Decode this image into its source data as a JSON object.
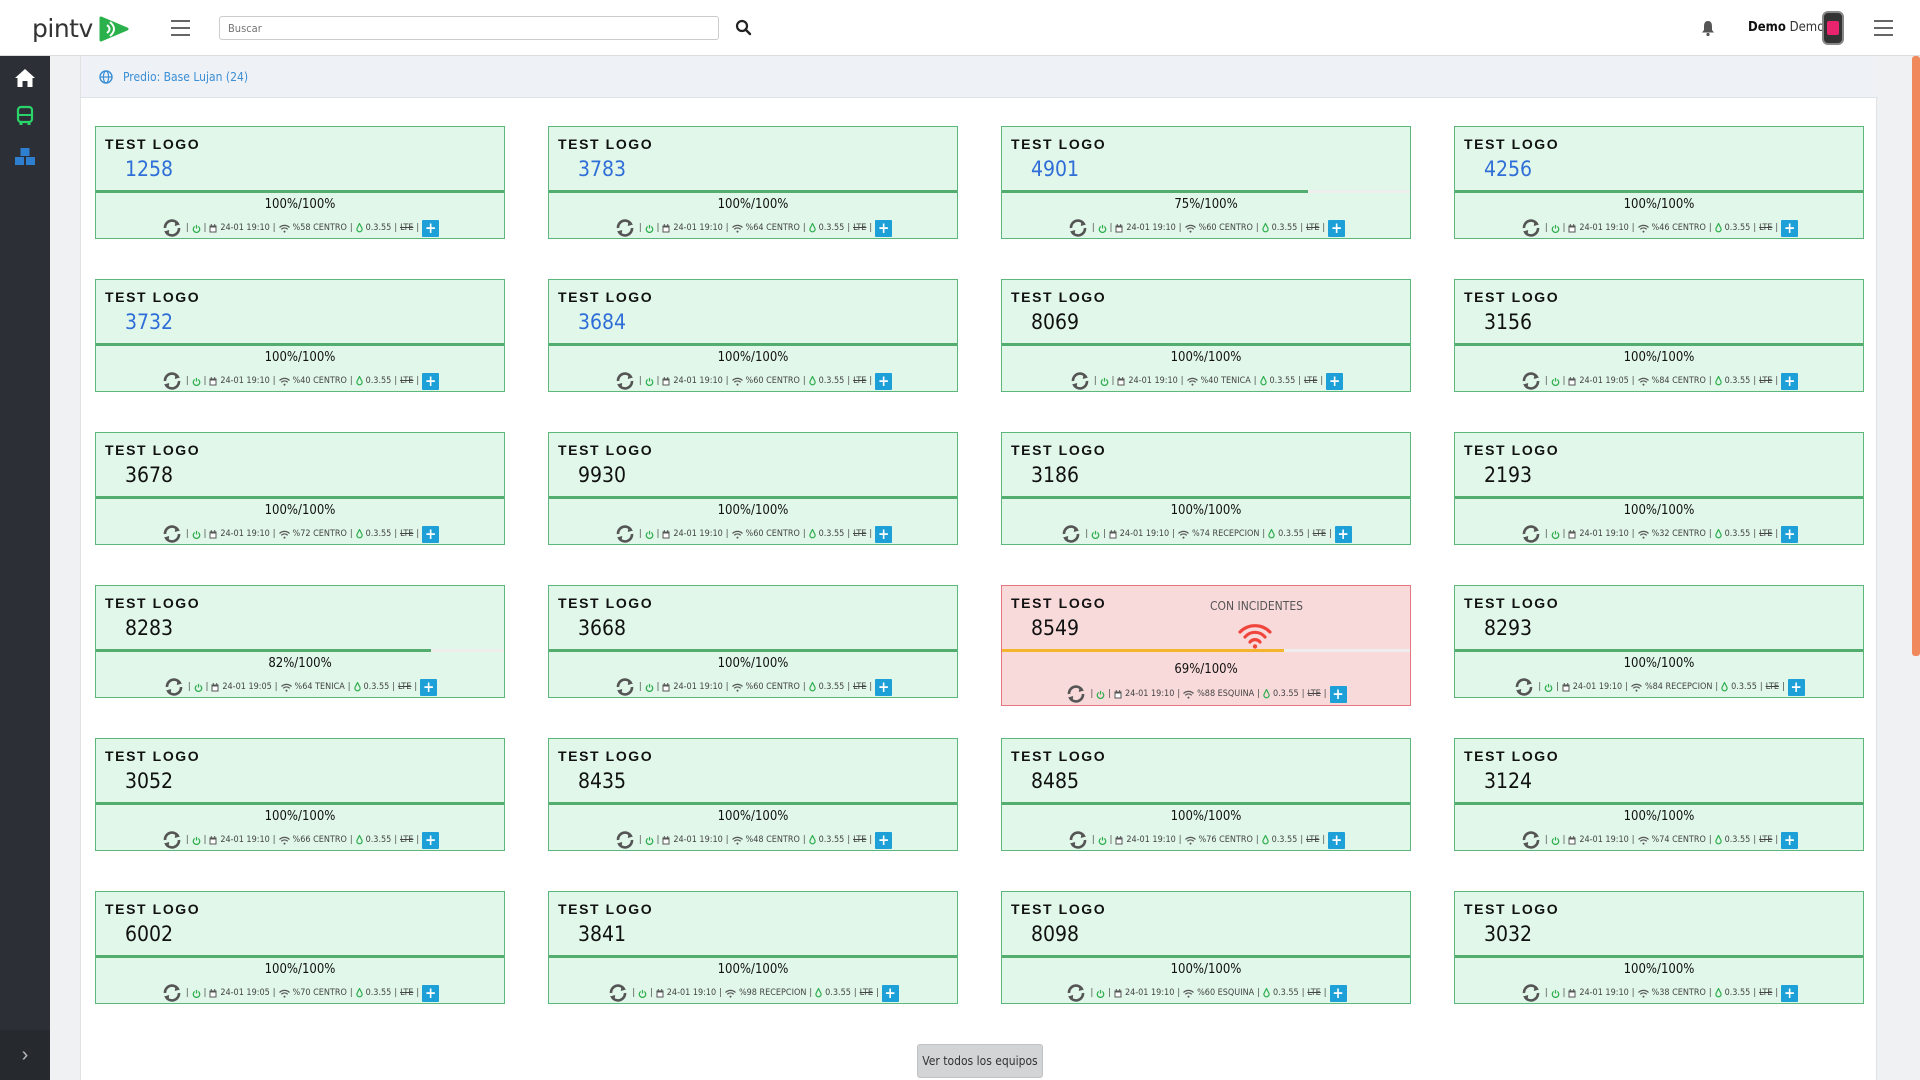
{
  "app": {
    "logo_text": "pintv"
  },
  "search": {
    "placeholder": "Buscar"
  },
  "user": {
    "first": "Demo",
    "last": "Demo"
  },
  "breadcrumb": {
    "label": "Predio: Base Lujan (24)"
  },
  "footer": {
    "view_all_label": "Ver todos los equipos"
  },
  "colors": {
    "card_ok_bg": "#e0f7e9",
    "card_ok_border": "#5cb87a",
    "card_alert_bg": "#f9dadb",
    "card_alert_border": "#e5787f",
    "accent_blue": "#2f6ed8",
    "progress_green": "#52ad6e",
    "progress_amber": "#f4b42c"
  },
  "devices": [
    {
      "brand": "TEST LOGO",
      "id": "1258",
      "highlight": true,
      "progress": 1.0,
      "pct": "100%/100%",
      "date": "24-01 19:10",
      "signal": "%58 CENTRO",
      "version": "0.3.55",
      "net": "LTE"
    },
    {
      "brand": "TEST LOGO",
      "id": "3783",
      "highlight": true,
      "progress": 1.0,
      "pct": "100%/100%",
      "date": "24-01 19:10",
      "signal": "%64 CENTRO",
      "version": "0.3.55",
      "net": "LTE"
    },
    {
      "brand": "TEST LOGO",
      "id": "4901",
      "highlight": true,
      "progress": 0.75,
      "pct": "75%/100%",
      "date": "24-01 19:10",
      "signal": "%60 CENTRO",
      "version": "0.3.55",
      "net": "LTE"
    },
    {
      "brand": "TEST LOGO",
      "id": "4256",
      "highlight": true,
      "progress": 1.0,
      "pct": "100%/100%",
      "date": "24-01 19:10",
      "signal": "%46 CENTRO",
      "version": "0.3.55",
      "net": "LTE"
    },
    {
      "brand": "TEST LOGO",
      "id": "3732",
      "highlight": true,
      "progress": 1.0,
      "pct": "100%/100%",
      "date": "24-01 19:10",
      "signal": "%40 CENTRO",
      "version": "0.3.55",
      "net": "LTE"
    },
    {
      "brand": "TEST LOGO",
      "id": "3684",
      "highlight": true,
      "progress": 1.0,
      "pct": "100%/100%",
      "date": "24-01 19:10",
      "signal": "%60 CENTRO",
      "version": "0.3.55",
      "net": "LTE"
    },
    {
      "brand": "TEST LOGO",
      "id": "8069",
      "highlight": false,
      "progress": 1.0,
      "pct": "100%/100%",
      "date": "24-01 19:10",
      "signal": "%40 TENICA",
      "version": "0.3.55",
      "net": "LTE"
    },
    {
      "brand": "TEST LOGO",
      "id": "3156",
      "highlight": false,
      "progress": 1.0,
      "pct": "100%/100%",
      "date": "24-01 19:05",
      "signal": "%84 CENTRO",
      "version": "0.3.55",
      "net": "LTE"
    },
    {
      "brand": "TEST LOGO",
      "id": "3678",
      "highlight": false,
      "progress": 1.0,
      "pct": "100%/100%",
      "date": "24-01 19:10",
      "signal": "%72 CENTRO",
      "version": "0.3.55",
      "net": "LTE"
    },
    {
      "brand": "TEST LOGO",
      "id": "9930",
      "highlight": false,
      "progress": 1.0,
      "pct": "100%/100%",
      "date": "24-01 19:10",
      "signal": "%60 CENTRO",
      "version": "0.3.55",
      "net": "LTE"
    },
    {
      "brand": "TEST LOGO",
      "id": "3186",
      "highlight": false,
      "progress": 1.0,
      "pct": "100%/100%",
      "date": "24-01 19:10",
      "signal": "%74 RECEPCION",
      "version": "0.3.55",
      "net": "LTE"
    },
    {
      "brand": "TEST LOGO",
      "id": "2193",
      "highlight": false,
      "progress": 1.0,
      "pct": "100%/100%",
      "date": "24-01 19:10",
      "signal": "%32 CENTRO",
      "version": "0.3.55",
      "net": "LTE"
    },
    {
      "brand": "TEST LOGO",
      "id": "8283",
      "highlight": false,
      "progress": 0.82,
      "pct": "82%/100%",
      "date": "24-01 19:05",
      "signal": "%64 TENICA",
      "version": "0.3.55",
      "net": "LTE"
    },
    {
      "brand": "TEST LOGO",
      "id": "3668",
      "highlight": false,
      "progress": 1.0,
      "pct": "100%/100%",
      "date": "24-01 19:10",
      "signal": "%60 CENTRO",
      "version": "0.3.55",
      "net": "LTE"
    },
    {
      "brand": "TEST LOGO",
      "id": "8549",
      "highlight": false,
      "progress": 0.69,
      "pct": "69%/100%",
      "date": "24-01 19:10",
      "signal": "%88 ESQUINA",
      "version": "0.3.55",
      "net": "LTE",
      "alert": "CON INCIDENTES"
    },
    {
      "brand": "TEST LOGO",
      "id": "8293",
      "highlight": false,
      "progress": 1.0,
      "pct": "100%/100%",
      "date": "24-01 19:10",
      "signal": "%84 RECEPCION",
      "version": "0.3.55",
      "net": "LTE"
    },
    {
      "brand": "TEST LOGO",
      "id": "3052",
      "highlight": false,
      "progress": 1.0,
      "pct": "100%/100%",
      "date": "24-01 19:10",
      "signal": "%66 CENTRO",
      "version": "0.3.55",
      "net": "LTE"
    },
    {
      "brand": "TEST LOGO",
      "id": "8435",
      "highlight": false,
      "progress": 1.0,
      "pct": "100%/100%",
      "date": "24-01 19:10",
      "signal": "%48 CENTRO",
      "version": "0.3.55",
      "net": "LTE"
    },
    {
      "brand": "TEST LOGO",
      "id": "8485",
      "highlight": false,
      "progress": 1.0,
      "pct": "100%/100%",
      "date": "24-01 19:10",
      "signal": "%76 CENTRO",
      "version": "0.3.55",
      "net": "LTE"
    },
    {
      "brand": "TEST LOGO",
      "id": "3124",
      "highlight": false,
      "progress": 1.0,
      "pct": "100%/100%",
      "date": "24-01 19:10",
      "signal": "%74 CENTRO",
      "version": "0.3.55",
      "net": "LTE"
    },
    {
      "brand": "TEST LOGO",
      "id": "6002",
      "highlight": false,
      "progress": 1.0,
      "pct": "100%/100%",
      "date": "24-01 19:05",
      "signal": "%70 CENTRO",
      "version": "0.3.55",
      "net": "LTE"
    },
    {
      "brand": "TEST LOGO",
      "id": "3841",
      "highlight": false,
      "progress": 1.0,
      "pct": "100%/100%",
      "date": "24-01 19:10",
      "signal": "%98 RECEPCION",
      "version": "0.3.55",
      "net": "LTE"
    },
    {
      "brand": "TEST LOGO",
      "id": "8098",
      "highlight": false,
      "progress": 1.0,
      "pct": "100%/100%",
      "date": "24-01 19:10",
      "signal": "%60 ESQUINA",
      "version": "0.3.55",
      "net": "LTE"
    },
    {
      "brand": "TEST LOGO",
      "id": "3032",
      "highlight": false,
      "progress": 1.0,
      "pct": "100%/100%",
      "date": "24-01 19:10",
      "signal": "%38 CENTRO",
      "version": "0.3.55",
      "net": "LTE"
    }
  ]
}
